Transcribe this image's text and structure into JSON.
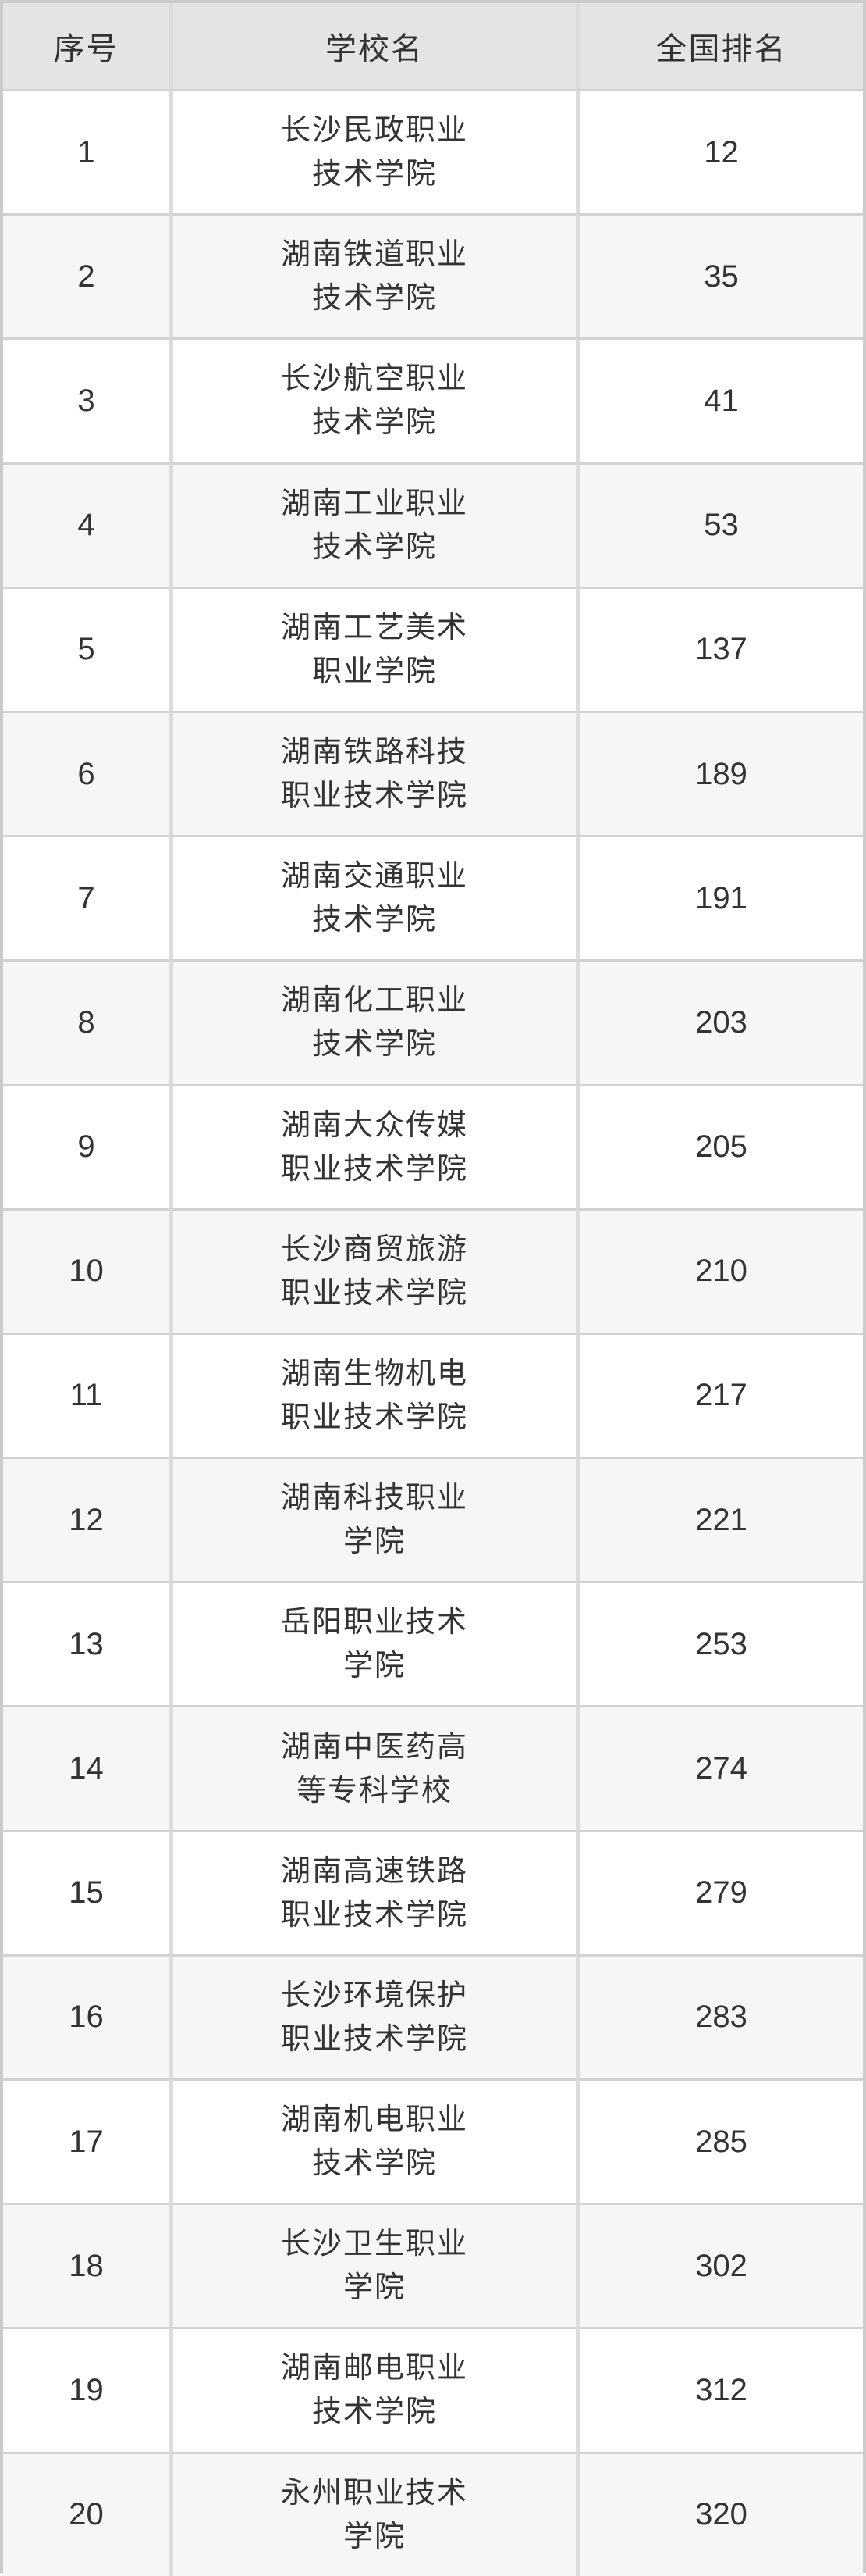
{
  "chart_data": {
    "type": "table",
    "columns": [
      "序号",
      "学校名",
      "全国排名"
    ],
    "rows": [
      [
        "1",
        "长沙民政职业技术学院",
        "12"
      ],
      [
        "2",
        "湖南铁道职业技术学院",
        "35"
      ],
      [
        "3",
        "长沙航空职业技术学院",
        "41"
      ],
      [
        "4",
        "湖南工业职业技术学院",
        "53"
      ],
      [
        "5",
        "湖南工艺美术职业学院",
        "137"
      ],
      [
        "6",
        "湖南铁路科技职业技术学院",
        "189"
      ],
      [
        "7",
        "湖南交通职业技术学院",
        "191"
      ],
      [
        "8",
        "湖南化工职业技术学院",
        "203"
      ],
      [
        "9",
        "湖南大众传媒职业技术学院",
        "205"
      ],
      [
        "10",
        "长沙商贸旅游职业技术学院",
        "210"
      ],
      [
        "11",
        "湖南生物机电职业技术学院",
        "217"
      ],
      [
        "12",
        "湖南科技职业学院",
        "221"
      ],
      [
        "13",
        "岳阳职业技术学院",
        "253"
      ],
      [
        "14",
        "湖南中医药高等专科学校",
        "274"
      ],
      [
        "15",
        "湖南高速铁路职业技术学院",
        "279"
      ],
      [
        "16",
        "长沙环境保护职业技术学院",
        "283"
      ],
      [
        "17",
        "湖南机电职业技术学院",
        "285"
      ],
      [
        "18",
        "长沙卫生职业学院",
        "302"
      ],
      [
        "19",
        "湖南邮电职业技术学院",
        "312"
      ],
      [
        "20",
        "永州职业技术学院",
        "320"
      ]
    ],
    "layout": {
      "legend": "none",
      "grid": "full-borders",
      "row_striping": "even-rows-gray"
    },
    "colors": {
      "header_bg": "#e4e4e4",
      "row_alt_bg": "#f6f6f6",
      "row_bg": "#ffffff",
      "border_outer": "#cbcbcb",
      "border_horizontal": "#d2d2d2",
      "border_vertical": "#dcdcdc",
      "text": "#333333"
    }
  }
}
